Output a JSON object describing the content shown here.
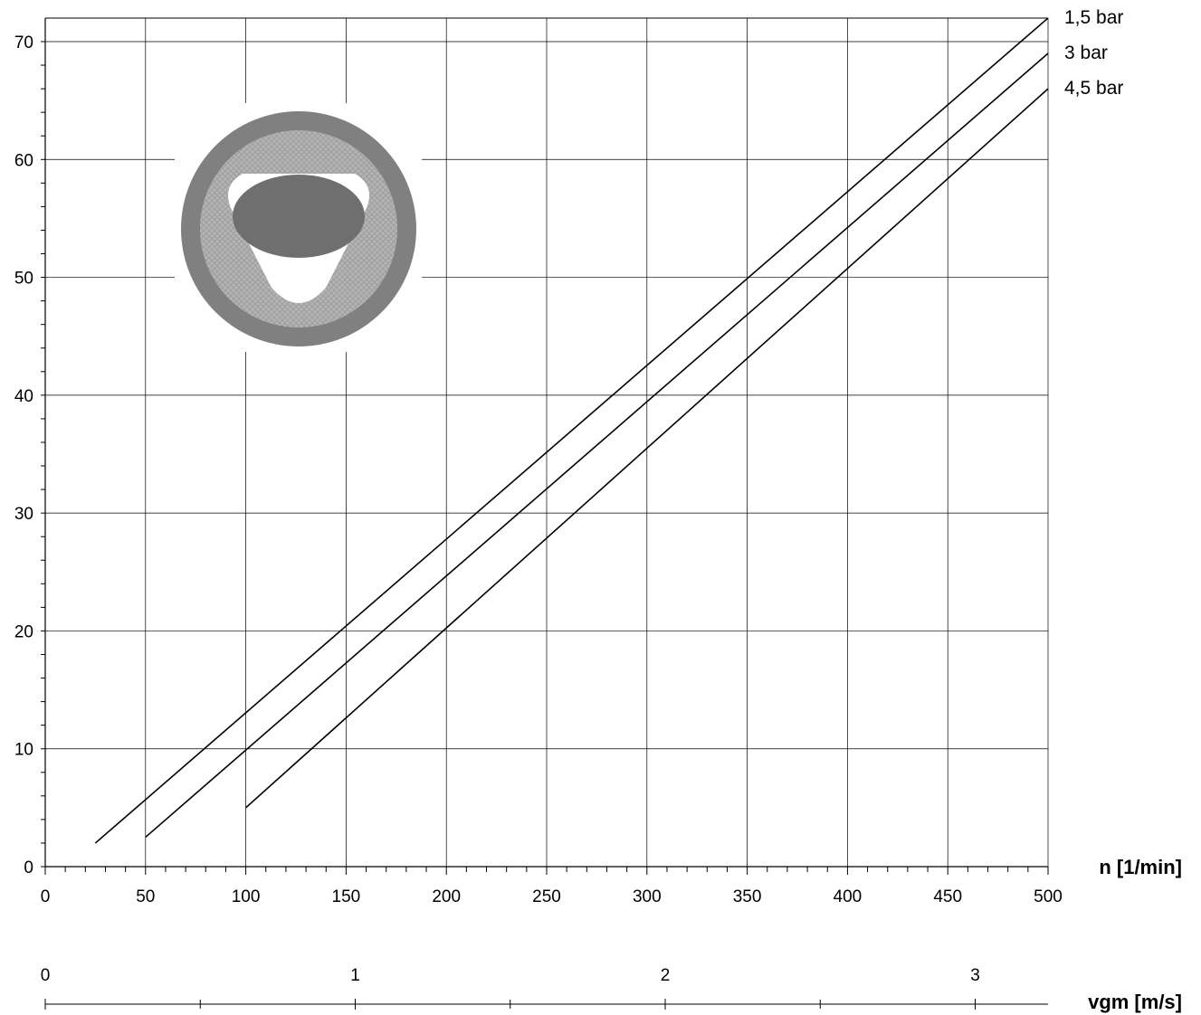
{
  "chart_data": {
    "type": "line",
    "title": "",
    "xlabel": "n [1/min]",
    "ylabel": "",
    "xlim": [
      0,
      500
    ],
    "ylim": [
      0,
      70
    ],
    "xticks": [
      0,
      50,
      100,
      150,
      200,
      250,
      300,
      350,
      400,
      450,
      500
    ],
    "yticks": [
      0,
      10,
      20,
      30,
      40,
      50,
      60,
      70
    ],
    "grid": true,
    "legend": "labels at right end of lines",
    "secondary_x_axis": {
      "label": "vgm [m/s]",
      "ticks": [
        0,
        1,
        2,
        3
      ]
    },
    "series": [
      {
        "name": "1,5 bar",
        "x": [
          25,
          500
        ],
        "y": [
          2,
          72
        ]
      },
      {
        "name": "3 bar",
        "x": [
          50,
          500
        ],
        "y": [
          2.5,
          69
        ]
      },
      {
        "name": "4,5 bar",
        "x": [
          100,
          500
        ],
        "y": [
          5,
          66
        ]
      }
    ],
    "colors": {
      "lines": "#000000",
      "grid": "#000000",
      "inset_ring": "#808080",
      "inset_hatch": "#a8a8a8",
      "inset_core": "#707070"
    }
  }
}
